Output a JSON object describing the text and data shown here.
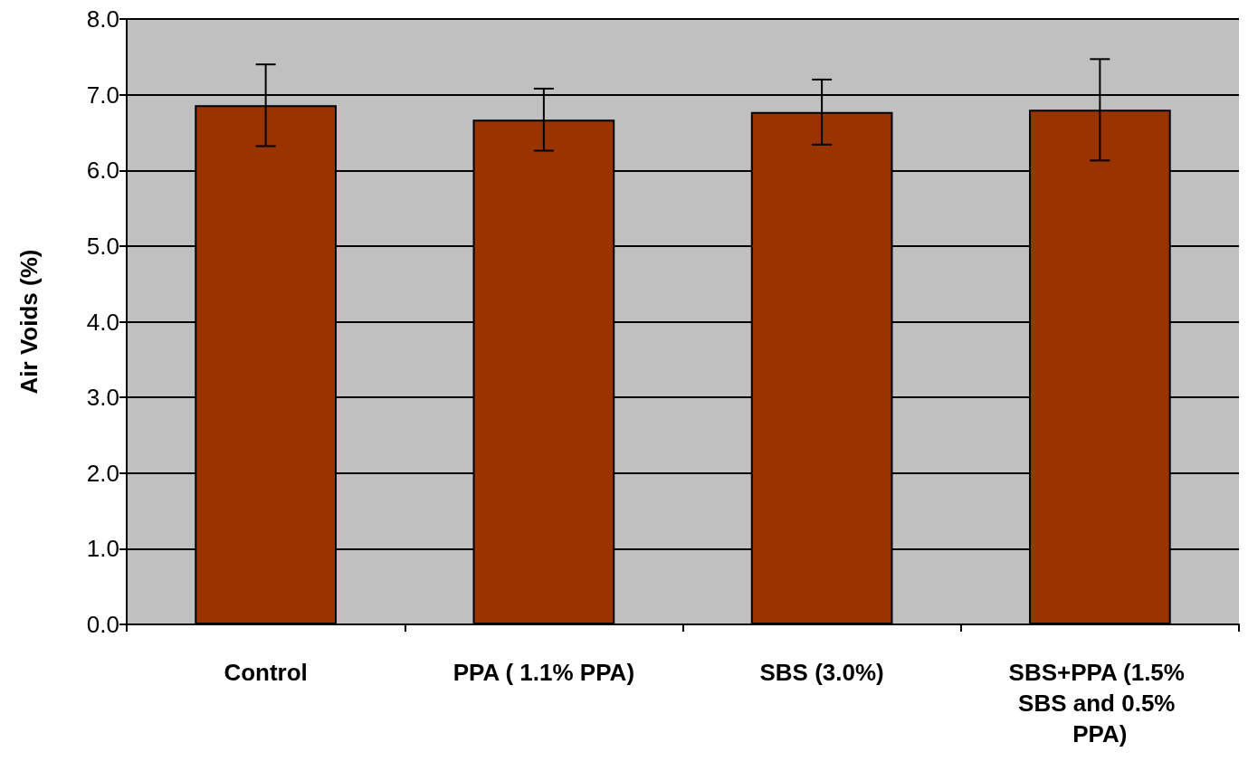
{
  "chart_data": {
    "type": "bar",
    "ylabel": "Air Voids (%)",
    "categories": [
      "Control",
      "PPA ( 1.1% PPA)",
      "SBS (3.0%)",
      "SBS+PPA (1.5% SBS and 0.5% PPA)"
    ],
    "values": [
      6.86,
      6.67,
      6.77,
      6.8
    ],
    "errors": [
      0.54,
      0.41,
      0.43,
      0.67
    ],
    "color": "#993300",
    "ylim": [
      0,
      8
    ],
    "yticks": [
      {
        "value": 0,
        "label": "0.0"
      },
      {
        "value": 1,
        "label": "1.0"
      },
      {
        "value": 2,
        "label": "2.0"
      },
      {
        "value": 3,
        "label": "3.0"
      },
      {
        "value": 4,
        "label": "4.0"
      },
      {
        "value": 5,
        "label": "5.0"
      },
      {
        "value": 6,
        "label": "6.0"
      },
      {
        "value": 7,
        "label": "7.0"
      },
      {
        "value": 8,
        "label": "8.0"
      }
    ],
    "grid": "y"
  }
}
